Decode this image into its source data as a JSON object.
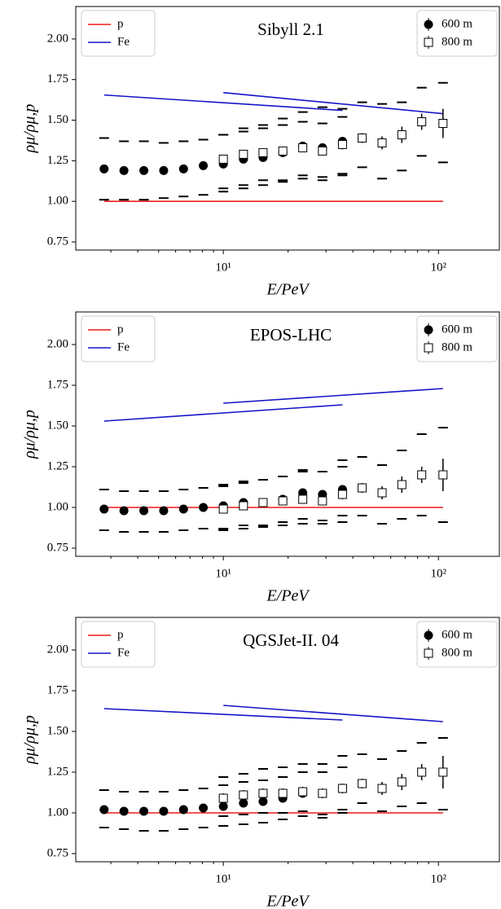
{
  "chart_data": [
    {
      "type": "scatter",
      "title": "Sibyll 2.1",
      "xlabel": "E/PeV",
      "ylabel": "ρμ/ρμ,p",
      "xlog": true,
      "xlim": [
        2.06,
        192
      ],
      "ylim": [
        0.7,
        2.2
      ],
      "xticks": [
        {
          "value": 10,
          "label": "10¹"
        },
        {
          "value": 100,
          "label": "10²"
        }
      ],
      "yticks": [
        {
          "value": 0.75,
          "label": "0.75"
        },
        {
          "value": 1,
          "label": "1.00"
        },
        {
          "value": 1.25,
          "label": "1.25"
        },
        {
          "value": 1.5,
          "label": "1.50"
        },
        {
          "value": 1.75,
          "label": "1.75"
        },
        {
          "value": 2,
          "label": "2.00"
        }
      ],
      "series": [
        {
          "name": "p",
          "color": "#ee1c1c",
          "marker": "line",
          "legend": "upper left",
          "x": [
            2.79,
            35.8,
            null,
            10.0,
            105
          ],
          "values": [
            1.0,
            1.0,
            null,
            1.0,
            1.0
          ]
        },
        {
          "name": "Fe",
          "color": "#1414c8",
          "marker": "line",
          "legend": "upper left",
          "x": [
            2.79,
            35.8,
            null,
            10.0,
            105
          ],
          "values": [
            1.655,
            1.56,
            null,
            1.67,
            1.54
          ]
        },
        {
          "name": "600 m",
          "color": "#000000",
          "marker": "circle",
          "legend": "upper right",
          "x": [
            2.79,
            3.45,
            4.27,
            5.28,
            6.53,
            8.07,
            10.0,
            12.4,
            15.3,
            18.9,
            23.4,
            28.9,
            35.8
          ],
          "values": [
            1.2,
            1.19,
            1.19,
            1.19,
            1.2,
            1.22,
            1.23,
            1.26,
            1.27,
            1.3,
            1.34,
            1.33,
            1.37
          ],
          "sys_upper": [
            1.39,
            1.37,
            1.37,
            1.36,
            1.37,
            1.38,
            1.41,
            1.43,
            1.45,
            1.47,
            1.49,
            1.48,
            1.52
          ],
          "sys_lower": [
            1.01,
            1.01,
            1.01,
            1.02,
            1.03,
            1.04,
            1.06,
            1.08,
            1.1,
            1.12,
            1.14,
            1.13,
            1.16
          ]
        },
        {
          "name": "800 m",
          "color": "#000000",
          "marker": "square",
          "legend": "upper right",
          "x": [
            10.0,
            12.4,
            15.3,
            18.9,
            23.4,
            28.9,
            35.8,
            44.2,
            54.7,
            67.6,
            83.6,
            105
          ],
          "values": [
            1.26,
            1.29,
            1.3,
            1.31,
            1.33,
            1.31,
            1.35,
            1.39,
            1.36,
            1.41,
            1.49,
            1.48
          ],
          "errors": [
            0.02,
            0.02,
            0.02,
            0.02,
            0.02,
            0.02,
            0.03,
            0.03,
            0.04,
            0.05,
            0.05,
            0.09
          ],
          "sys_upper": [
            1.41,
            1.45,
            1.47,
            1.51,
            1.55,
            1.58,
            1.57,
            1.61,
            1.6,
            1.61,
            1.7,
            1.73
          ],
          "sys_lower": [
            1.08,
            1.1,
            1.13,
            1.13,
            1.16,
            1.15,
            1.17,
            1.21,
            1.14,
            1.19,
            1.28,
            1.24
          ]
        }
      ]
    },
    {
      "type": "scatter",
      "title": "EPOS-LHC",
      "xlabel": "E/PeV",
      "ylabel": "ρμ/ρμ,p",
      "xlog": true,
      "xlim": [
        2.06,
        192
      ],
      "ylim": [
        0.7,
        2.2
      ],
      "xticks": [
        {
          "value": 10,
          "label": "10¹"
        },
        {
          "value": 100,
          "label": "10²"
        }
      ],
      "yticks": [
        {
          "value": 0.75,
          "label": "0.75"
        },
        {
          "value": 1,
          "label": "1.00"
        },
        {
          "value": 1.25,
          "label": "1.25"
        },
        {
          "value": 1.5,
          "label": "1.50"
        },
        {
          "value": 1.75,
          "label": "1.75"
        },
        {
          "value": 2,
          "label": "2.00"
        }
      ],
      "series": [
        {
          "name": "p",
          "color": "#ee1c1c",
          "marker": "line",
          "legend": "upper left",
          "x": [
            2.79,
            35.8,
            null,
            10.0,
            105
          ],
          "values": [
            1.0,
            1.0,
            null,
            1.0,
            1.0
          ]
        },
        {
          "name": "Fe",
          "color": "#1414c8",
          "marker": "line",
          "legend": "upper left",
          "x": [
            2.79,
            35.8,
            null,
            10.0,
            105
          ],
          "values": [
            1.53,
            1.63,
            null,
            1.64,
            1.73
          ]
        },
        {
          "name": "600 m",
          "color": "#000000",
          "marker": "circle",
          "legend": "upper right",
          "x": [
            2.79,
            3.45,
            4.27,
            5.28,
            6.53,
            8.07,
            10.0,
            12.4,
            15.3,
            18.9,
            23.4,
            28.9,
            35.8
          ],
          "values": [
            0.99,
            0.98,
            0.98,
            0.98,
            0.99,
            1.0,
            1.01,
            1.03,
            1.03,
            1.05,
            1.09,
            1.08,
            1.11
          ],
          "sys_upper": [
            1.11,
            1.1,
            1.1,
            1.1,
            1.11,
            1.12,
            1.14,
            1.16,
            1.17,
            1.19,
            1.23,
            1.22,
            1.25
          ],
          "sys_lower": [
            0.86,
            0.85,
            0.85,
            0.85,
            0.86,
            0.87,
            0.87,
            0.89,
            0.89,
            0.91,
            0.93,
            0.92,
            0.95
          ]
        },
        {
          "name": "800 m",
          "color": "#000000",
          "marker": "square",
          "legend": "upper right",
          "x": [
            10.0,
            12.4,
            15.3,
            18.9,
            23.4,
            28.9,
            35.8,
            44.2,
            54.7,
            67.6,
            83.6,
            105
          ],
          "values": [
            0.99,
            1.01,
            1.03,
            1.04,
            1.05,
            1.04,
            1.08,
            1.12,
            1.09,
            1.14,
            1.2,
            1.2
          ],
          "errors": [
            0.02,
            0.02,
            0.02,
            0.02,
            0.02,
            0.02,
            0.03,
            0.03,
            0.04,
            0.05,
            0.05,
            0.1
          ],
          "sys_upper": [
            1.13,
            1.15,
            1.17,
            1.19,
            1.22,
            1.22,
            1.29,
            1.31,
            1.26,
            1.35,
            1.45,
            1.49
          ],
          "sys_lower": [
            0.86,
            0.87,
            0.88,
            0.89,
            0.9,
            0.9,
            0.91,
            0.95,
            0.9,
            0.93,
            0.95,
            0.91
          ]
        }
      ]
    },
    {
      "type": "scatter",
      "title": "QGSJet-II. 04",
      "xlabel": "E/PeV",
      "ylabel": "ρμ/ρμ,p",
      "xlog": true,
      "xlim": [
        2.06,
        192
      ],
      "ylim": [
        0.7,
        2.2
      ],
      "xticks": [
        {
          "value": 10,
          "label": "10¹"
        },
        {
          "value": 100,
          "label": "10²"
        }
      ],
      "yticks": [
        {
          "value": 0.75,
          "label": "0.75"
        },
        {
          "value": 1,
          "label": "1.00"
        },
        {
          "value": 1.25,
          "label": "1.25"
        },
        {
          "value": 1.5,
          "label": "1.50"
        },
        {
          "value": 1.75,
          "label": "1.75"
        },
        {
          "value": 2,
          "label": "2.00"
        }
      ],
      "series": [
        {
          "name": "p",
          "color": "#ee1c1c",
          "marker": "line",
          "legend": "upper left",
          "x": [
            2.79,
            35.8,
            null,
            10.0,
            105
          ],
          "values": [
            1.0,
            1.0,
            null,
            1.0,
            1.0
          ]
        },
        {
          "name": "Fe",
          "color": "#1414c8",
          "marker": "line",
          "legend": "upper left",
          "x": [
            2.79,
            35.8,
            null,
            10.0,
            105
          ],
          "values": [
            1.64,
            1.57,
            null,
            1.66,
            1.56
          ]
        },
        {
          "name": "600 m",
          "color": "#000000",
          "marker": "circle",
          "legend": "upper right",
          "x": [
            2.79,
            3.45,
            4.27,
            5.28,
            6.53,
            8.07,
            10.0,
            12.4,
            15.3,
            18.9,
            23.4,
            28.9,
            35.8
          ],
          "values": [
            1.02,
            1.01,
            1.01,
            1.01,
            1.02,
            1.03,
            1.04,
            1.06,
            1.07,
            1.09,
            1.12,
            1.12,
            1.15
          ],
          "sys_upper": [
            1.14,
            1.13,
            1.13,
            1.13,
            1.14,
            1.15,
            1.17,
            1.19,
            1.2,
            1.22,
            1.25,
            1.25,
            1.28
          ],
          "sys_lower": [
            0.91,
            0.9,
            0.89,
            0.89,
            0.9,
            0.91,
            0.92,
            0.93,
            0.94,
            0.96,
            0.98,
            0.97,
            1.0
          ]
        },
        {
          "name": "800 m",
          "color": "#000000",
          "marker": "square",
          "legend": "upper right",
          "x": [
            10.0,
            12.4,
            15.3,
            18.9,
            23.4,
            28.9,
            35.8,
            44.2,
            54.7,
            67.6,
            83.6,
            105
          ],
          "values": [
            1.09,
            1.11,
            1.12,
            1.12,
            1.13,
            1.12,
            1.15,
            1.18,
            1.15,
            1.19,
            1.25,
            1.25
          ],
          "errors": [
            0.03,
            0.03,
            0.03,
            0.03,
            0.03,
            0.03,
            0.03,
            0.03,
            0.04,
            0.05,
            0.05,
            0.1
          ],
          "sys_upper": [
            1.22,
            1.24,
            1.27,
            1.28,
            1.3,
            1.3,
            1.35,
            1.36,
            1.33,
            1.38,
            1.43,
            1.46
          ],
          "sys_lower": [
            0.98,
            0.99,
            1.0,
            1.0,
            1.01,
            0.99,
            1.02,
            1.06,
            1.01,
            1.04,
            1.06,
            1.02
          ]
        }
      ]
    }
  ]
}
